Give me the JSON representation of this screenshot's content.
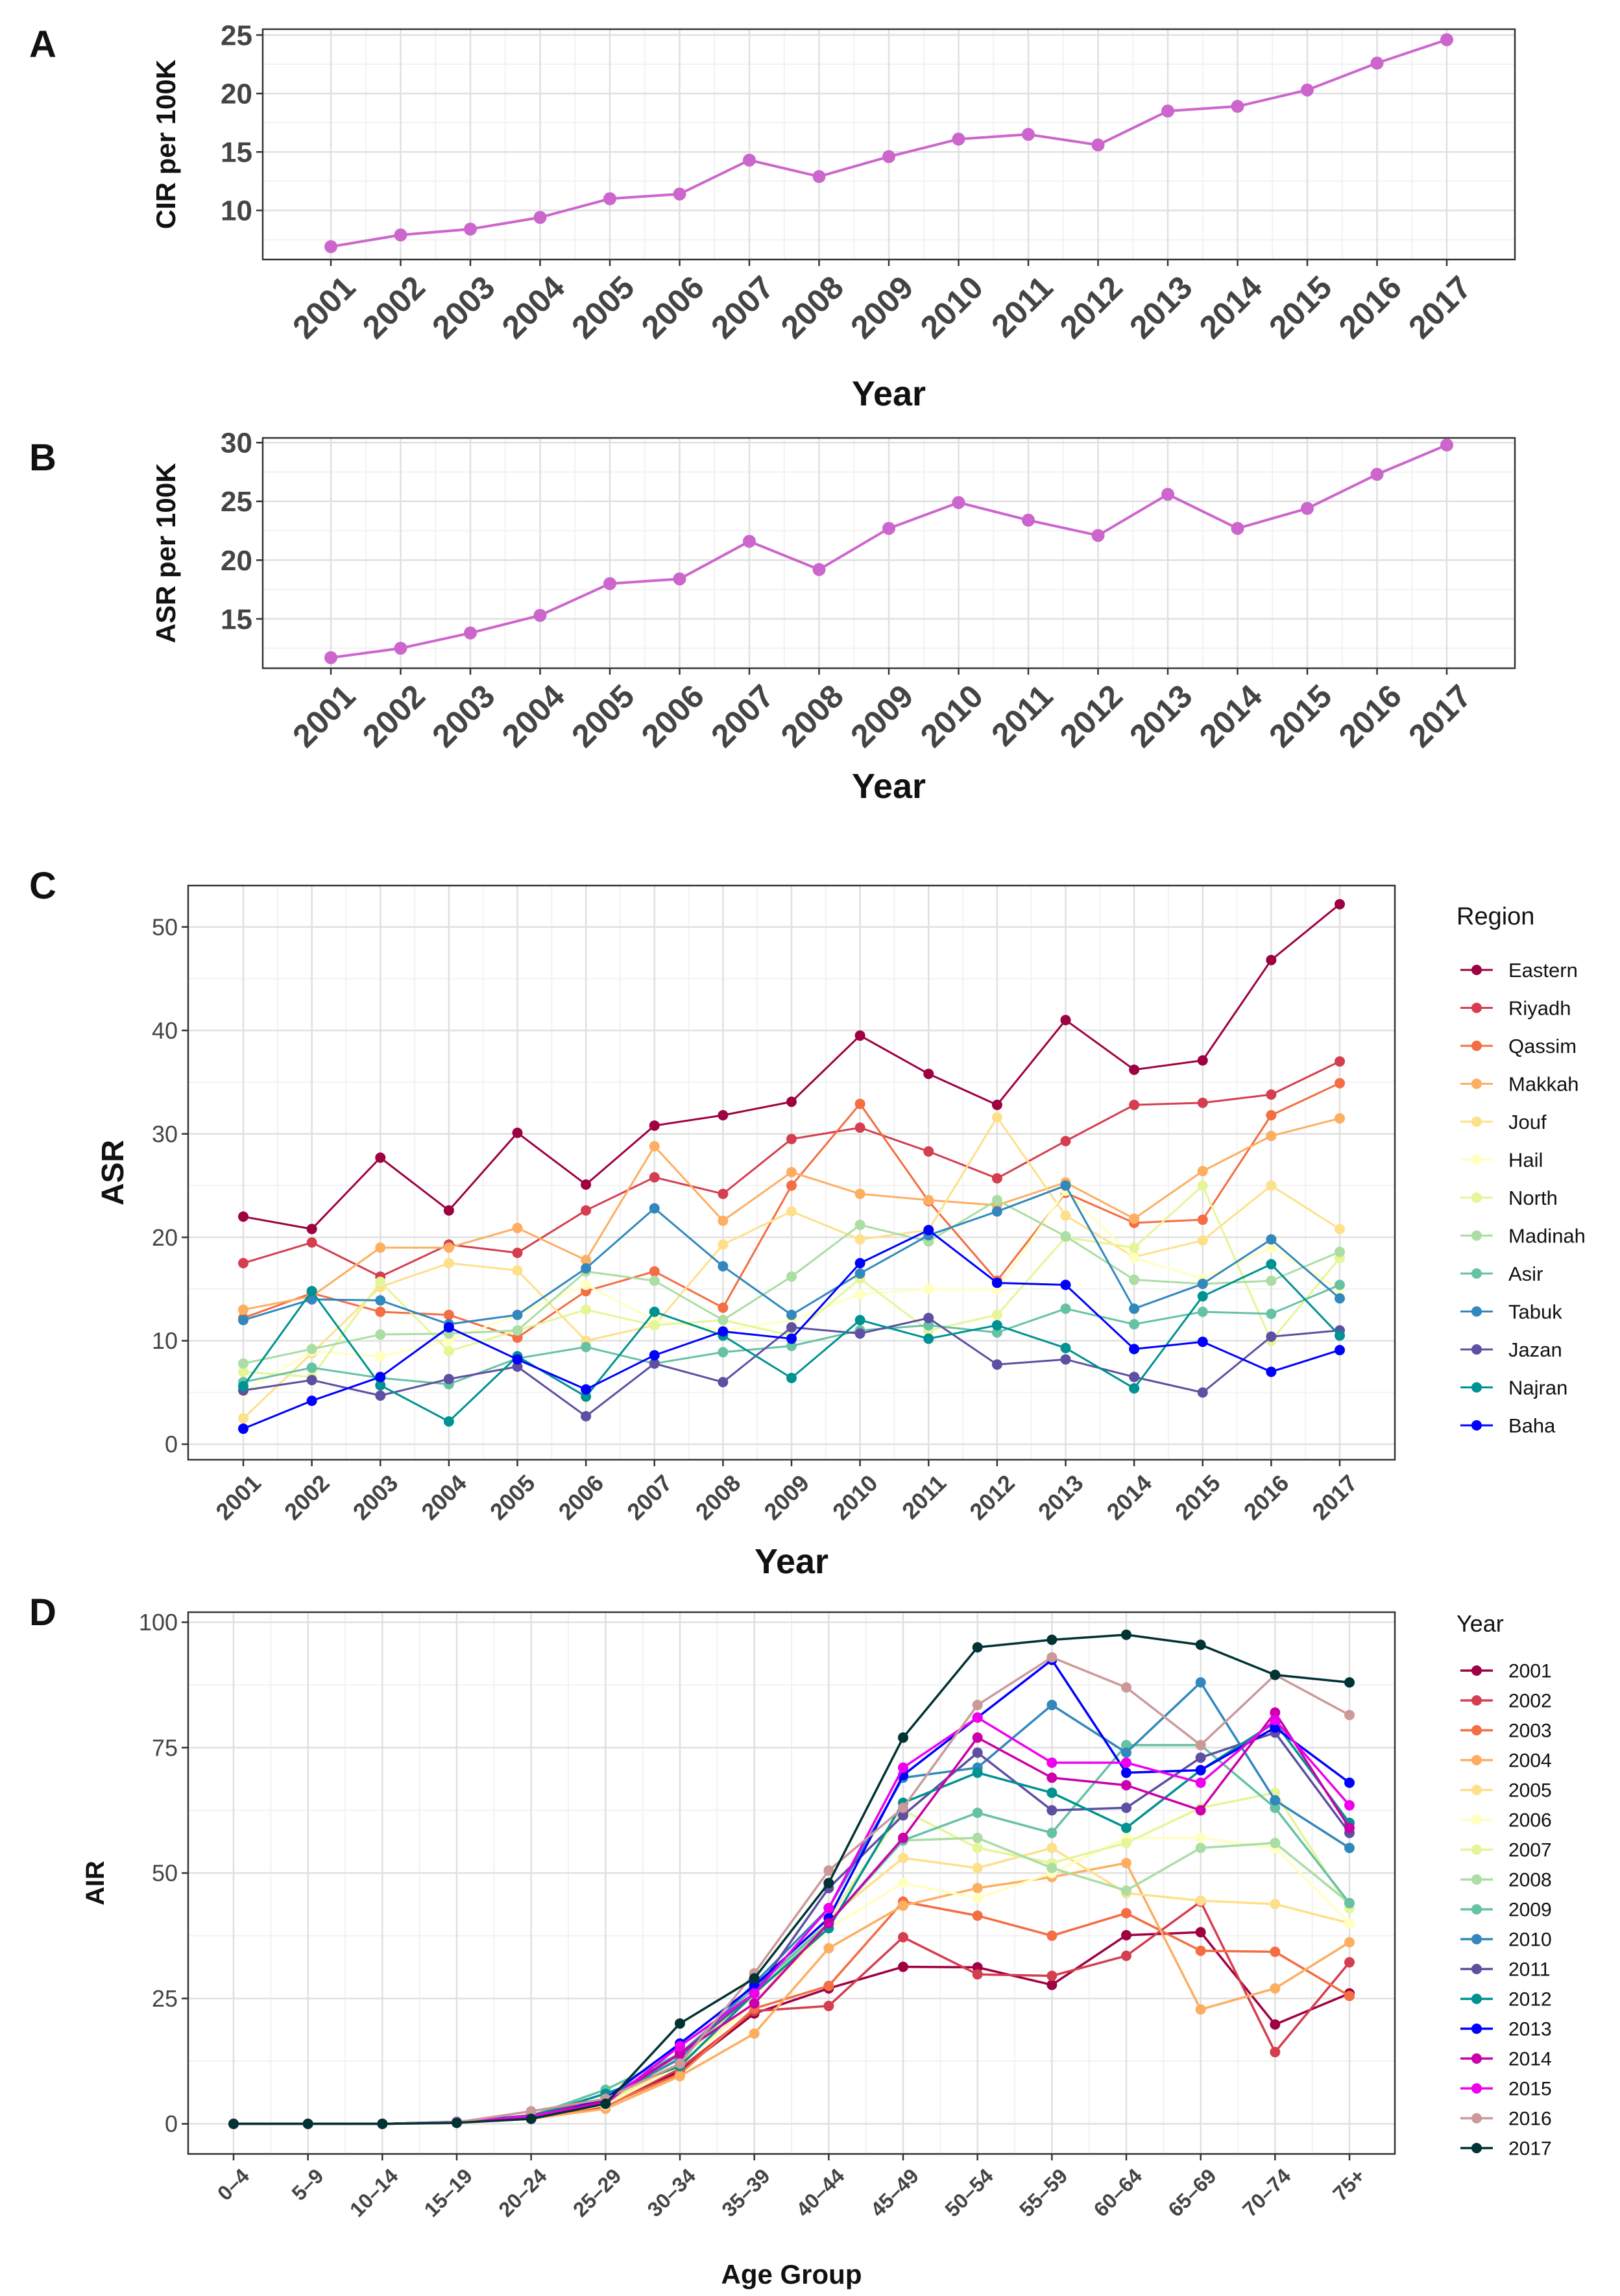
{
  "figure": {
    "panel_labels": [
      "A",
      "B",
      "C",
      "D"
    ]
  },
  "colors": {
    "line_A": "#cc66cc",
    "line_B": "#cc66cc",
    "grid_major": "#e0e0e0",
    "grid_minor": "#f2f2f2",
    "axis_text": "#444444",
    "title_text": "#111111",
    "region_colors": [
      "#9e0142",
      "#d53e4f",
      "#f46d43",
      "#fdae61",
      "#fee08b",
      "#ffffbf",
      "#e6f598",
      "#abdda4",
      "#66c2a5",
      "#3288bd",
      "#5e4fa2",
      "#009292",
      "#0000ff"
    ],
    "year_colors": [
      "#9e0142",
      "#d53e4f",
      "#f46d43",
      "#fdae61",
      "#fee08b",
      "#ffffbf",
      "#e6f598",
      "#abdda4",
      "#66c2a5",
      "#3288bd",
      "#5e4fa2",
      "#009292",
      "#0000ff",
      "#cc00aa",
      "#ee00ee",
      "#cc9999",
      "#003333"
    ]
  },
  "chart_data": [
    {
      "panel": "A",
      "type": "line",
      "xlabel": "Year",
      "ylabel": "CIR per 100K",
      "categories": [
        "2001",
        "2002",
        "2003",
        "2004",
        "2005",
        "2006",
        "2007",
        "2008",
        "2009",
        "2010",
        "2011",
        "2012",
        "2013",
        "2014",
        "2015",
        "2016",
        "2017"
      ],
      "ylim": [
        5.8,
        25.5
      ],
      "yticks": [
        10,
        15,
        20,
        25
      ],
      "series": [
        {
          "name": "CIR",
          "values": [
            6.9,
            7.9,
            8.4,
            9.4,
            11.0,
            11.4,
            14.3,
            12.9,
            14.6,
            16.1,
            16.5,
            15.6,
            18.5,
            18.9,
            20.3,
            22.6,
            24.6
          ]
        }
      ]
    },
    {
      "panel": "B",
      "type": "line",
      "xlabel": "Year",
      "ylabel": "ASR per 100K",
      "categories": [
        "2001",
        "2002",
        "2003",
        "2004",
        "2005",
        "2006",
        "2007",
        "2008",
        "2009",
        "2010",
        "2011",
        "2012",
        "2013",
        "2014",
        "2015",
        "2016",
        "2017"
      ],
      "ylim": [
        10.8,
        30.4
      ],
      "yticks": [
        15,
        20,
        25,
        30
      ],
      "series": [
        {
          "name": "ASR",
          "values": [
            11.7,
            12.5,
            13.8,
            15.3,
            18.0,
            18.4,
            21.6,
            19.2,
            22.7,
            24.9,
            23.4,
            22.1,
            25.6,
            22.7,
            24.4,
            27.3,
            29.8
          ]
        }
      ]
    },
    {
      "panel": "C",
      "type": "line",
      "xlabel": "Year",
      "ylabel": "ASR",
      "legend_title": "Region",
      "legend_position": "right",
      "categories": [
        "2001",
        "2002",
        "2003",
        "2004",
        "2005",
        "2006",
        "2007",
        "2008",
        "2009",
        "2010",
        "2011",
        "2012",
        "2013",
        "2014",
        "2015",
        "2016",
        "2017"
      ],
      "ylim": [
        -1.5,
        54
      ],
      "yticks": [
        0,
        10,
        20,
        30,
        40,
        50
      ],
      "series": [
        {
          "name": "Eastern",
          "values": [
            22.0,
            20.8,
            27.7,
            22.6,
            30.1,
            25.1,
            30.8,
            31.8,
            33.1,
            39.5,
            35.8,
            32.8,
            41.0,
            36.2,
            37.1,
            46.8,
            52.2
          ]
        },
        {
          "name": "Riyadh",
          "values": [
            17.5,
            19.5,
            16.2,
            19.3,
            18.5,
            22.6,
            25.8,
            24.2,
            29.5,
            30.6,
            28.3,
            25.7,
            29.3,
            32.8,
            33.0,
            33.8,
            37.0
          ]
        },
        {
          "name": "Qassim",
          "values": [
            12.2,
            14.6,
            12.8,
            12.5,
            10.3,
            14.8,
            16.7,
            13.2,
            25.0,
            32.9,
            23.5,
            15.8,
            24.3,
            21.4,
            21.7,
            31.8,
            34.9
          ]
        },
        {
          "name": "Makkah",
          "values": [
            13.0,
            14.3,
            19.0,
            19.0,
            20.9,
            17.8,
            28.8,
            21.6,
            26.3,
            24.2,
            23.6,
            23.1,
            25.3,
            21.8,
            26.4,
            29.8,
            31.5
          ]
        },
        {
          "name": "Jouf",
          "values": [
            2.5,
            8.8,
            15.2,
            17.5,
            16.8,
            10.0,
            11.5,
            19.3,
            22.5,
            19.8,
            20.7,
            31.6,
            22.1,
            18.1,
            19.7,
            25.0,
            20.8
          ]
        },
        {
          "name": "Hail",
          "values": [
            5.0,
            9.0,
            8.5,
            10.0,
            12.5,
            15.4,
            12.0,
            11.0,
            12.0,
            14.5,
            15.0,
            15.0,
            24.5,
            18.0,
            16.0,
            19.0,
            15.0
          ]
        },
        {
          "name": "North",
          "values": [
            7.0,
            6.5,
            15.7,
            9.0,
            11.0,
            13.0,
            11.5,
            12.0,
            10.5,
            16.0,
            11.0,
            12.5,
            20.0,
            19.0,
            25.0,
            10.0,
            18.0
          ]
        },
        {
          "name": "Madinah",
          "values": [
            7.8,
            9.2,
            10.6,
            10.7,
            11.0,
            16.7,
            15.8,
            12.0,
            16.2,
            21.2,
            19.6,
            23.6,
            20.1,
            15.9,
            15.5,
            15.8,
            18.6
          ]
        },
        {
          "name": "Asir",
          "values": [
            6.0,
            7.4,
            6.4,
            5.8,
            8.3,
            9.4,
            7.8,
            8.9,
            9.5,
            11.0,
            11.5,
            10.8,
            13.1,
            11.6,
            12.8,
            12.6,
            15.4
          ]
        },
        {
          "name": "Tabuk",
          "values": [
            12.0,
            14.0,
            13.9,
            11.6,
            12.5,
            17.0,
            22.8,
            17.2,
            12.5,
            16.5,
            20.2,
            22.5,
            25.0,
            13.1,
            15.5,
            19.8,
            14.1
          ]
        },
        {
          "name": "Jazan",
          "values": [
            5.2,
            6.2,
            4.7,
            6.3,
            7.5,
            2.7,
            7.8,
            6.0,
            11.3,
            10.7,
            12.2,
            7.7,
            8.2,
            6.5,
            5.0,
            10.4,
            11.0
          ]
        },
        {
          "name": "Najran",
          "values": [
            5.6,
            14.8,
            5.7,
            2.2,
            8.5,
            4.6,
            12.8,
            10.5,
            6.4,
            12.0,
            10.2,
            11.5,
            9.3,
            5.4,
            14.3,
            17.4,
            10.5
          ]
        },
        {
          "name": "Baha",
          "values": [
            1.5,
            4.2,
            6.5,
            11.3,
            8.2,
            5.3,
            8.6,
            10.9,
            10.2,
            17.5,
            20.7,
            15.6,
            15.4,
            9.2,
            9.9,
            7.0,
            9.1
          ]
        }
      ]
    },
    {
      "panel": "D",
      "type": "line",
      "xlabel": "Age Group",
      "ylabel": "AIR",
      "legend_title": "Year",
      "legend_position": "right",
      "categories": [
        "0–4",
        "5–9",
        "10–14",
        "15–19",
        "20–24",
        "25–29",
        "30–34",
        "35–39",
        "40–44",
        "45–49",
        "50–54",
        "55–59",
        "60–64",
        "65–69",
        "70–74",
        "75+"
      ],
      "ylim": [
        -6,
        102
      ],
      "yticks": [
        0,
        25,
        50,
        75,
        100
      ],
      "series": [
        {
          "name": "2001",
          "values": [
            0,
            0,
            0,
            0.3,
            1.0,
            3.5,
            10.5,
            22.0,
            27.0,
            31.3,
            31.2,
            27.7,
            37.6,
            38.2,
            19.8,
            26.0
          ]
        },
        {
          "name": "2002",
          "values": [
            0,
            0,
            0,
            0.3,
            1.2,
            3.7,
            11.0,
            22.5,
            23.5,
            37.2,
            29.8,
            29.5,
            33.5,
            44.3,
            14.3,
            32.2
          ]
        },
        {
          "name": "2003",
          "values": [
            0,
            0,
            0,
            0.2,
            1.1,
            3.6,
            10.0,
            23.0,
            27.5,
            44.3,
            41.5,
            37.5,
            42.0,
            34.5,
            34.3,
            25.5
          ]
        },
        {
          "name": "2004",
          "values": [
            0,
            0,
            0,
            0.2,
            1.0,
            3.0,
            9.5,
            18.0,
            35.0,
            43.5,
            47.0,
            49.2,
            52.0,
            22.8,
            27.0,
            36.2
          ]
        },
        {
          "name": "2005",
          "values": [
            0,
            0,
            0,
            0.3,
            1.5,
            4.0,
            12.0,
            24.0,
            41.0,
            53.0,
            51.0,
            55.0,
            46.0,
            44.5,
            43.8,
            40.0
          ]
        },
        {
          "name": "2006",
          "values": [
            0,
            0,
            0,
            0.3,
            1.3,
            3.8,
            11.5,
            24.0,
            39.0,
            48.0,
            45.0,
            50.0,
            57.0,
            57.0,
            55.0,
            40.0
          ]
        },
        {
          "name": "2007",
          "values": [
            0,
            0,
            0,
            0.3,
            1.4,
            4.0,
            13.0,
            25.5,
            41.0,
            62.5,
            55.0,
            52.0,
            56.0,
            63.0,
            66.0,
            43.0
          ]
        },
        {
          "name": "2008",
          "values": [
            0,
            0,
            0,
            0.3,
            1.5,
            4.5,
            13.5,
            26.0,
            40.0,
            56.5,
            57.0,
            51.0,
            46.5,
            55.0,
            56.0,
            44.0
          ]
        },
        {
          "name": "2009",
          "values": [
            0,
            0,
            0,
            0.4,
            1.6,
            6.8,
            14.0,
            27.0,
            40.0,
            56.5,
            62.0,
            58.0,
            75.5,
            75.5,
            63.0,
            44.0
          ]
        },
        {
          "name": "2010",
          "values": [
            0,
            0,
            0,
            0.4,
            1.7,
            5.0,
            13.0,
            28.0,
            43.0,
            69.0,
            71.0,
            83.5,
            74.0,
            88.0,
            64.5,
            55.0
          ]
        },
        {
          "name": "2011",
          "values": [
            0,
            0,
            0,
            0.4,
            1.7,
            5.0,
            14.0,
            26.0,
            47.0,
            61.5,
            74.0,
            62.5,
            63.0,
            73.0,
            78.0,
            58.0
          ]
        },
        {
          "name": "2012",
          "values": [
            0,
            0,
            0,
            0.3,
            1.5,
            6.0,
            11.5,
            26.0,
            39.0,
            64.0,
            70.0,
            66.0,
            59.0,
            70.5,
            80.0,
            60.0
          ]
        },
        {
          "name": "2013",
          "values": [
            0,
            0,
            0,
            0.3,
            1.0,
            5.0,
            16.0,
            27.5,
            41.0,
            69.5,
            81.0,
            92.5,
            70.0,
            70.5,
            79.0,
            68.0
          ]
        },
        {
          "name": "2014",
          "values": [
            0,
            0,
            0,
            0.3,
            1.5,
            4.5,
            14.0,
            24.0,
            40.0,
            57.0,
            77.0,
            69.0,
            67.5,
            62.5,
            82.0,
            59.0
          ]
        },
        {
          "name": "2015",
          "values": [
            0,
            0,
            0,
            0.3,
            1.5,
            4.0,
            15.5,
            26.0,
            43.0,
            71.0,
            81.0,
            72.0,
            72.0,
            68.0,
            80.5,
            63.5
          ]
        },
        {
          "name": "2016",
          "values": [
            0,
            0,
            0,
            0.3,
            2.5,
            5.0,
            12.0,
            30.0,
            50.5,
            63.0,
            83.5,
            93.0,
            87.0,
            75.5,
            89.5,
            81.5
          ]
        },
        {
          "name": "2017",
          "values": [
            0,
            0,
            0,
            0.2,
            1.0,
            4.0,
            20.0,
            29.0,
            48.0,
            77.0,
            95.0,
            96.5,
            97.5,
            95.5,
            89.5,
            88.0
          ]
        }
      ]
    }
  ]
}
